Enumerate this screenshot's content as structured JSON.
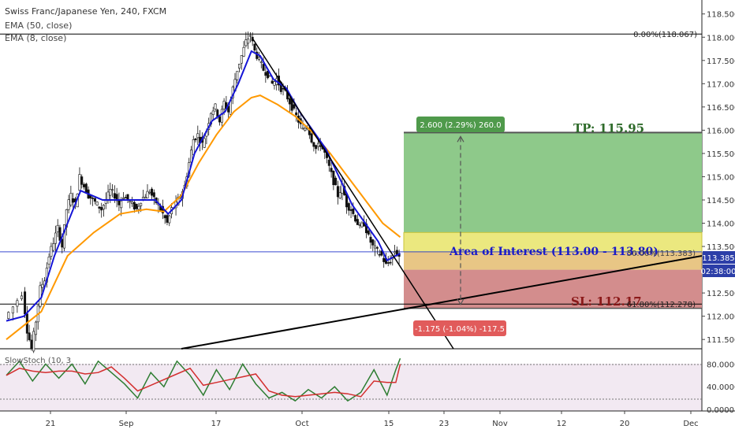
{
  "header": {
    "title": "Swiss Franc/Japanese Yen, 240, FXCM",
    "ema50": "EMA (50, close)",
    "ema8": "EMA (8, close)"
  },
  "stoch_label": "SlowStoch (10, 3",
  "annotations": {
    "tp_label": "TP: 115.95",
    "aoi_label": "Area of Interest (113.00 - 113.80)",
    "sl_label": "SL: 112.17",
    "target_badge": "2.600 (2.29%) 260.0",
    "stop_badge": "-1.175 (-1.04%) -117.5",
    "fib_0": "0.00%(118.067)",
    "fib_50": "50.00%(113.383)",
    "fib_618": "61.80%(112.278)",
    "price_tag": "113.385",
    "countdown_tag": "02:38:00"
  },
  "colors": {
    "ema50": "#ff9900",
    "ema8": "#1515d6",
    "stoch_k": "#2e7d32",
    "stoch_d": "#d32f2f",
    "tp_zone": "#8ec98a",
    "sl_zone": "#d38d8d",
    "aoi_zone": "#e8e468",
    "price_line": "#3a4bd0"
  },
  "chart_data": {
    "type": "candlestick",
    "symbol": "CHFJPY",
    "timeframe": "240",
    "y_ticks": [
      "111.500",
      "112.000",
      "112.500",
      "113.000",
      "113.500",
      "114.000",
      "114.500",
      "115.000",
      "115.500",
      "116.000",
      "116.500",
      "117.000",
      "117.500",
      "118.000",
      "118.500"
    ],
    "ylim": [
      111.3,
      118.8
    ],
    "x_ticks": [
      "21",
      "Sep",
      "17",
      "Oct",
      "15",
      "23",
      "Nov",
      "12",
      "20",
      "Dec"
    ],
    "stoch_ticks": [
      "80.0000",
      "40.0000",
      "0.0000"
    ],
    "stoch_ylim": [
      0,
      100
    ],
    "price_path": [
      [
        0,
        111.95
      ],
      [
        2,
        112.2
      ],
      [
        4,
        112.5
      ],
      [
        5,
        111.7
      ],
      [
        6,
        111.3
      ],
      [
        7,
        111.9
      ],
      [
        8,
        112.6
      ],
      [
        9,
        112.8
      ],
      [
        10,
        113.3
      ],
      [
        11,
        113.6
      ],
      [
        12,
        113.9
      ],
      [
        13,
        113.5
      ],
      [
        14,
        114.3
      ],
      [
        15,
        114.6
      ],
      [
        16,
        114.4
      ],
      [
        17,
        115.0
      ],
      [
        18,
        114.8
      ],
      [
        19,
        114.6
      ],
      [
        20,
        114.5
      ],
      [
        21,
        114.4
      ],
      [
        22,
        114.3
      ],
      [
        23,
        114.5
      ],
      [
        24,
        114.7
      ],
      [
        25,
        114.6
      ],
      [
        26,
        114.4
      ],
      [
        27,
        114.6
      ],
      [
        28,
        114.5
      ],
      [
        29,
        114.4
      ],
      [
        30,
        114.3
      ],
      [
        31,
        114.5
      ],
      [
        32,
        114.6
      ],
      [
        33,
        114.7
      ],
      [
        34,
        114.5
      ],
      [
        35,
        114.4
      ],
      [
        36,
        114.2
      ],
      [
        37,
        114.0
      ],
      [
        38,
        114.3
      ],
      [
        39,
        114.4
      ],
      [
        40,
        114.6
      ],
      [
        41,
        114.8
      ],
      [
        42,
        115.3
      ],
      [
        43,
        115.8
      ],
      [
        44,
        115.9
      ],
      [
        45,
        115.7
      ],
      [
        46,
        116.0
      ],
      [
        47,
        116.4
      ],
      [
        48,
        116.5
      ],
      [
        49,
        116.2
      ],
      [
        50,
        116.6
      ],
      [
        51,
        116.4
      ],
      [
        52,
        116.9
      ],
      [
        53,
        117.3
      ],
      [
        54,
        117.6
      ],
      [
        55,
        117.9
      ],
      [
        56,
        118.05
      ],
      [
        57,
        117.7
      ],
      [
        58,
        117.5
      ],
      [
        59,
        117.3
      ],
      [
        60,
        117.2
      ],
      [
        61,
        117.0
      ],
      [
        62,
        117.1
      ],
      [
        63,
        116.9
      ],
      [
        64,
        116.8
      ],
      [
        65,
        116.6
      ],
      [
        66,
        116.4
      ],
      [
        67,
        116.2
      ],
      [
        68,
        116.0
      ],
      [
        69,
        116.1
      ],
      [
        70,
        115.8
      ],
      [
        71,
        115.6
      ],
      [
        72,
        115.7
      ],
      [
        73,
        115.5
      ],
      [
        74,
        115.2
      ],
      [
        75,
        114.9
      ],
      [
        76,
        114.6
      ],
      [
        77,
        114.8
      ],
      [
        78,
        114.4
      ],
      [
        79,
        114.3
      ],
      [
        80,
        114.1
      ],
      [
        81,
        113.9
      ],
      [
        82,
        114.0
      ],
      [
        83,
        113.7
      ],
      [
        84,
        113.5
      ],
      [
        85,
        113.4
      ],
      [
        86,
        113.3
      ],
      [
        87,
        113.1
      ],
      [
        88,
        113.2
      ],
      [
        89,
        113.4
      ],
      [
        90,
        113.3
      ]
    ],
    "ema50": [
      [
        0,
        111.5
      ],
      [
        8,
        112.1
      ],
      [
        14,
        113.3
      ],
      [
        20,
        113.8
      ],
      [
        26,
        114.2
      ],
      [
        32,
        114.3
      ],
      [
        36,
        114.25
      ],
      [
        40,
        114.6
      ],
      [
        44,
        115.3
      ],
      [
        48,
        115.9
      ],
      [
        52,
        116.4
      ],
      [
        56,
        116.7
      ],
      [
        58,
        116.75
      ],
      [
        62,
        116.55
      ],
      [
        66,
        116.3
      ],
      [
        70,
        115.95
      ],
      [
        74,
        115.5
      ],
      [
        78,
        115.0
      ],
      [
        82,
        114.5
      ],
      [
        86,
        114.0
      ],
      [
        90,
        113.7
      ]
    ],
    "ema8": [
      [
        0,
        111.9
      ],
      [
        4,
        112.0
      ],
      [
        8,
        112.4
      ],
      [
        11,
        113.3
      ],
      [
        14,
        114.0
      ],
      [
        17,
        114.7
      ],
      [
        22,
        114.5
      ],
      [
        28,
        114.5
      ],
      [
        34,
        114.5
      ],
      [
        37,
        114.2
      ],
      [
        40,
        114.5
      ],
      [
        43,
        115.5
      ],
      [
        47,
        116.2
      ],
      [
        50,
        116.4
      ],
      [
        53,
        117.0
      ],
      [
        56,
        117.7
      ],
      [
        58,
        117.6
      ],
      [
        61,
        117.1
      ],
      [
        64,
        116.9
      ],
      [
        67,
        116.4
      ],
      [
        70,
        116.0
      ],
      [
        73,
        115.6
      ],
      [
        76,
        115.0
      ],
      [
        79,
        114.4
      ],
      [
        82,
        114.0
      ],
      [
        85,
        113.6
      ],
      [
        87,
        113.2
      ],
      [
        89,
        113.3
      ],
      [
        90,
        113.35
      ]
    ],
    "levels": {
      "fib_0": 118.067,
      "fib_50": 113.383,
      "fib_618": 112.278,
      "tp": 115.95,
      "aoi_low": 113.0,
      "aoi_high": 113.8,
      "sl": 112.17,
      "last_price": 113.385
    },
    "stoch": [
      [
        0,
        60
      ],
      [
        3,
        85
      ],
      [
        6,
        50
      ],
      [
        9,
        80
      ],
      [
        12,
        55
      ],
      [
        15,
        80
      ],
      [
        18,
        45
      ],
      [
        21,
        85
      ],
      [
        24,
        65
      ],
      [
        27,
        45
      ],
      [
        30,
        20
      ],
      [
        33,
        65
      ],
      [
        36,
        40
      ],
      [
        39,
        85
      ],
      [
        42,
        60
      ],
      [
        45,
        25
      ],
      [
        48,
        70
      ],
      [
        51,
        35
      ],
      [
        54,
        80
      ],
      [
        57,
        45
      ],
      [
        60,
        20
      ],
      [
        63,
        30
      ],
      [
        66,
        15
      ],
      [
        69,
        35
      ],
      [
        72,
        20
      ],
      [
        75,
        40
      ],
      [
        78,
        15
      ],
      [
        81,
        30
      ],
      [
        84,
        70
      ],
      [
        87,
        25
      ],
      [
        89,
        70
      ],
      [
        90,
        90
      ]
    ]
  }
}
